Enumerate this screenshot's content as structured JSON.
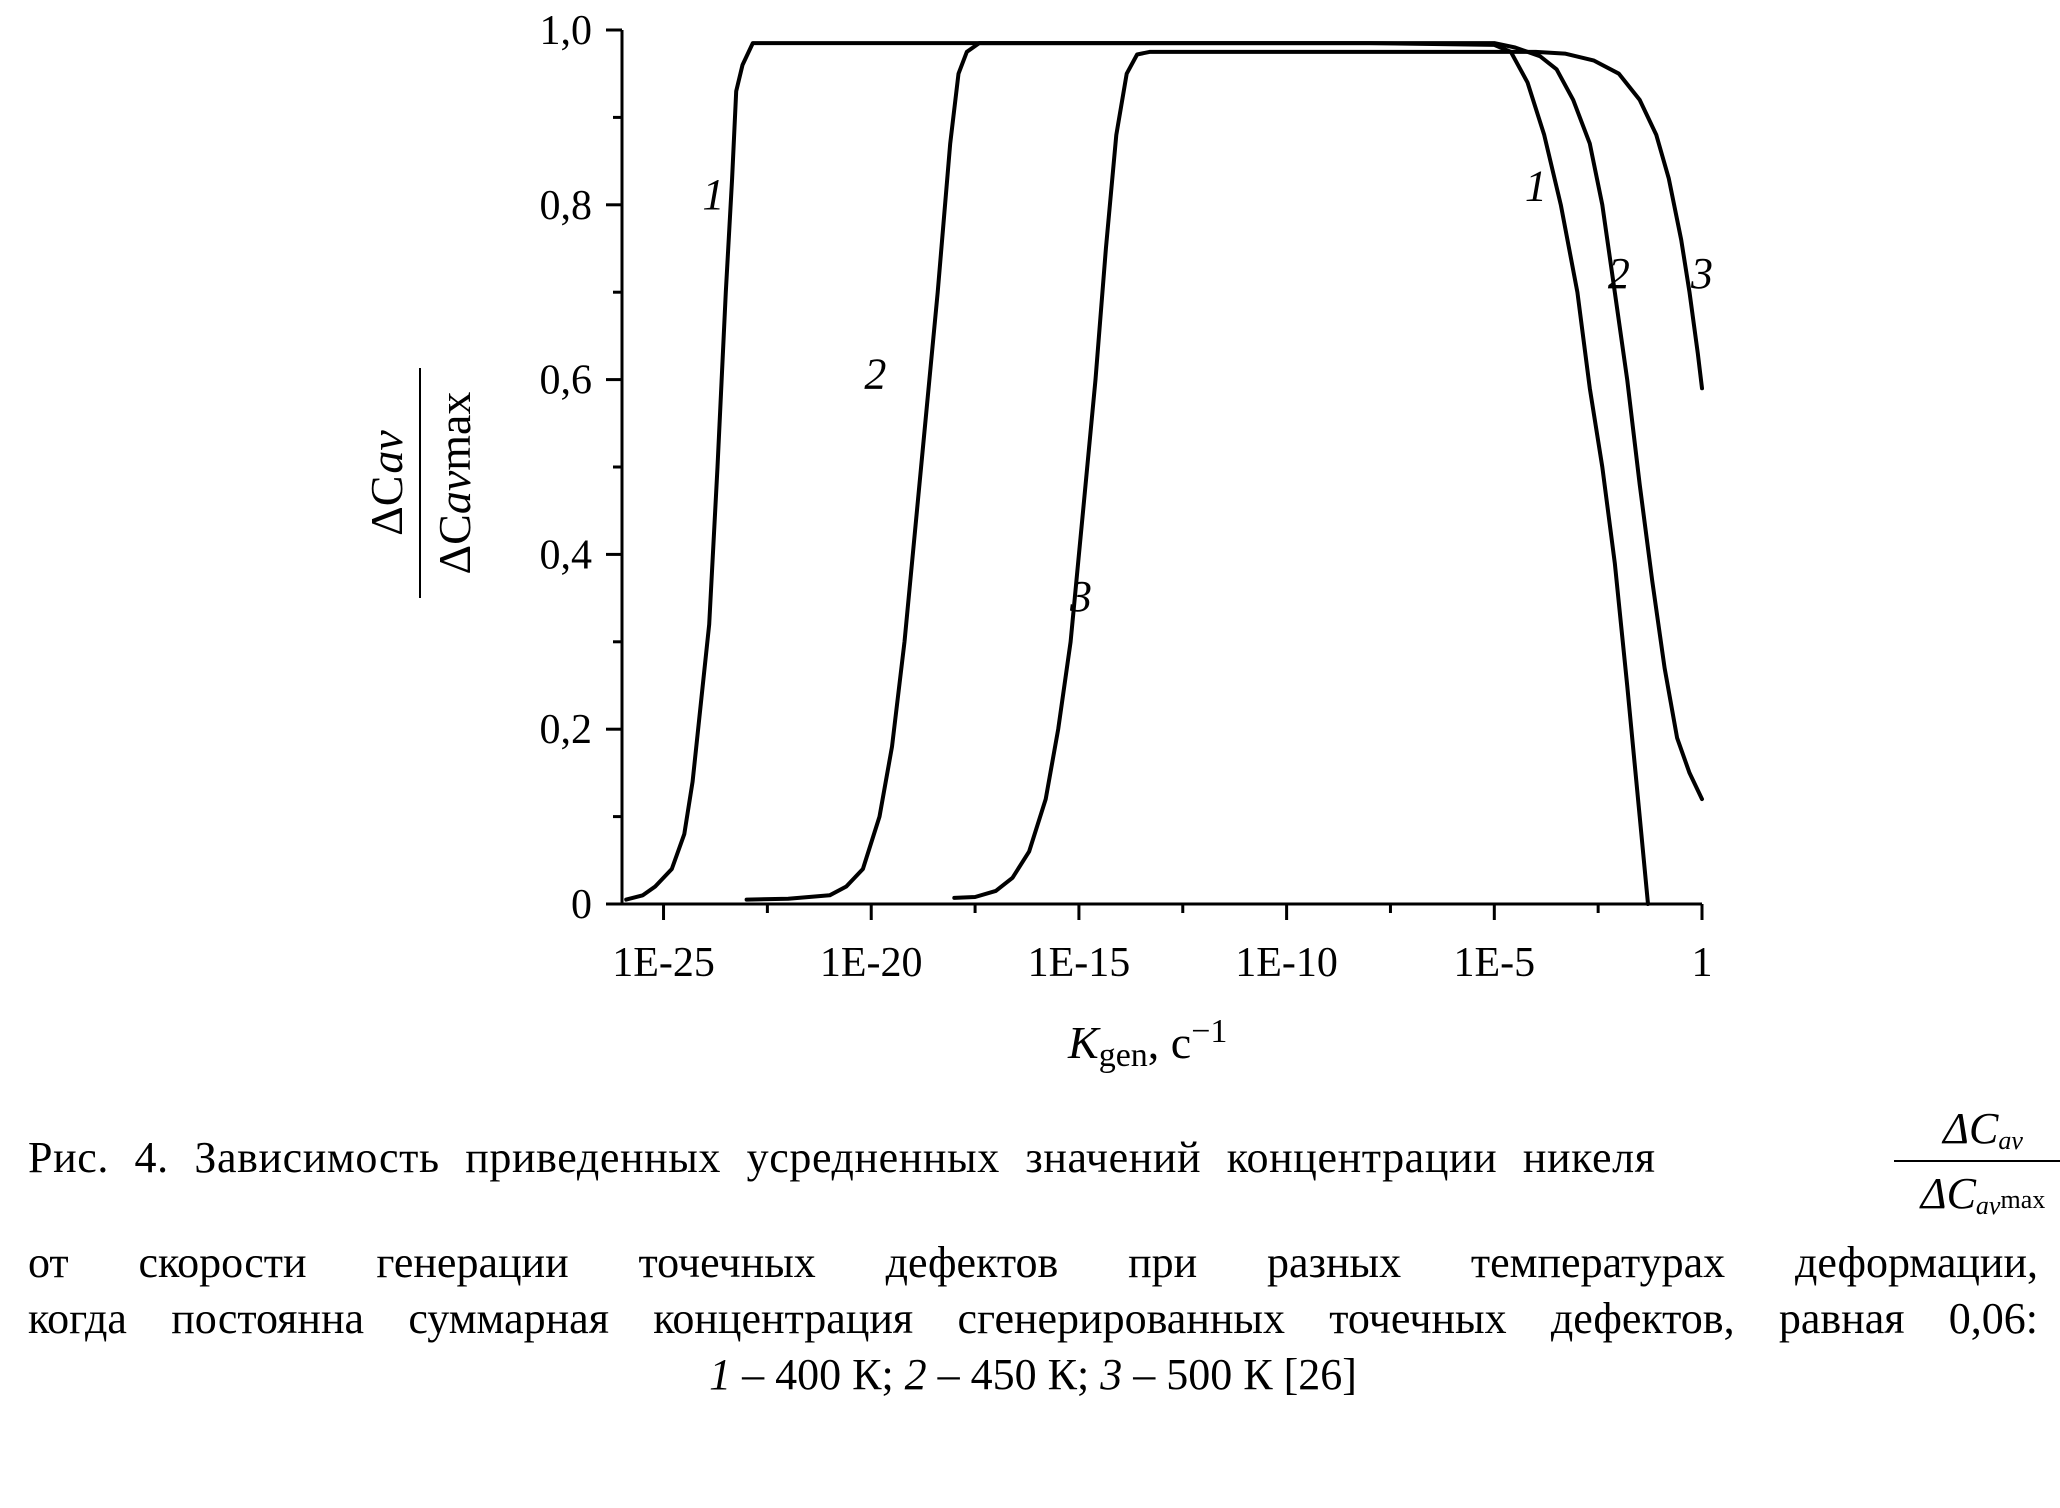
{
  "chart_data": {
    "type": "line",
    "xscale": "log",
    "xlim": [
      "1E-26",
      "1"
    ],
    "ylim": [
      0,
      1.0
    ],
    "xlabel": {
      "main": "K",
      "sub": "gen",
      "rest": ", с",
      "sup": "−1"
    },
    "ylabel": {
      "numerator": "ΔC",
      "numerator_sub": "av",
      "denominator": "ΔC",
      "denominator_sub": "av",
      "denominator_rest": "max"
    },
    "x_ticks": [
      "1E-25",
      "1E-20",
      "1E-15",
      "1E-10",
      "1E-5",
      "1"
    ],
    "y_ticks": [
      "0",
      "0,2",
      "0,4",
      "0,6",
      "0,8",
      "1,0"
    ],
    "grid": false,
    "series": [
      {
        "name": "1",
        "color": "#000000",
        "points": [
          [
            -25.9,
            0.005
          ],
          [
            -25.5,
            0.01
          ],
          [
            -25.2,
            0.02
          ],
          [
            -24.8,
            0.04
          ],
          [
            -24.5,
            0.08
          ],
          [
            -24.3,
            0.14
          ],
          [
            -24.1,
            0.23
          ],
          [
            -23.9,
            0.32
          ],
          [
            -23.7,
            0.5
          ],
          [
            -23.5,
            0.7
          ],
          [
            -23.35,
            0.83
          ],
          [
            -23.25,
            0.93
          ],
          [
            -23.1,
            0.96
          ],
          [
            -22.85,
            0.985
          ],
          [
            -22.5,
            0.985
          ],
          [
            -15,
            0.985
          ],
          [
            -8,
            0.985
          ],
          [
            -5,
            0.983
          ],
          [
            -4.6,
            0.975
          ],
          [
            -4.2,
            0.94
          ],
          [
            -3.8,
            0.88
          ],
          [
            -3.4,
            0.8
          ],
          [
            -3.0,
            0.7
          ],
          [
            -2.7,
            0.59
          ],
          [
            -2.4,
            0.5
          ],
          [
            -2.1,
            0.39
          ],
          [
            -1.8,
            0.25
          ],
          [
            -1.5,
            0.1
          ],
          [
            -1.3,
            0.0
          ]
        ]
      },
      {
        "name": "2",
        "color": "#000000",
        "points": [
          [
            -23.0,
            0.005
          ],
          [
            -22.0,
            0.006
          ],
          [
            -21.0,
            0.01
          ],
          [
            -20.6,
            0.02
          ],
          [
            -20.2,
            0.04
          ],
          [
            -19.8,
            0.1
          ],
          [
            -19.5,
            0.18
          ],
          [
            -19.2,
            0.3
          ],
          [
            -18.8,
            0.5
          ],
          [
            -18.4,
            0.7
          ],
          [
            -18.1,
            0.87
          ],
          [
            -17.9,
            0.95
          ],
          [
            -17.7,
            0.975
          ],
          [
            -17.4,
            0.985
          ],
          [
            -10,
            0.985
          ],
          [
            -5,
            0.985
          ],
          [
            -4.5,
            0.98
          ],
          [
            -3.9,
            0.97
          ],
          [
            -3.5,
            0.955
          ],
          [
            -3.1,
            0.92
          ],
          [
            -2.7,
            0.87
          ],
          [
            -2.4,
            0.8
          ],
          [
            -2.1,
            0.7
          ],
          [
            -1.8,
            0.6
          ],
          [
            -1.5,
            0.48
          ],
          [
            -1.2,
            0.37
          ],
          [
            -0.9,
            0.27
          ],
          [
            -0.6,
            0.19
          ],
          [
            -0.3,
            0.15
          ],
          [
            0.0,
            0.12
          ]
        ]
      },
      {
        "name": "3",
        "color": "#000000",
        "points": [
          [
            -18.0,
            0.007
          ],
          [
            -17.5,
            0.008
          ],
          [
            -17.0,
            0.015
          ],
          [
            -16.6,
            0.03
          ],
          [
            -16.2,
            0.06
          ],
          [
            -15.8,
            0.12
          ],
          [
            -15.5,
            0.2
          ],
          [
            -15.2,
            0.3
          ],
          [
            -14.9,
            0.45
          ],
          [
            -14.6,
            0.6
          ],
          [
            -14.35,
            0.75
          ],
          [
            -14.1,
            0.88
          ],
          [
            -13.85,
            0.95
          ],
          [
            -13.6,
            0.972
          ],
          [
            -13.3,
            0.975
          ],
          [
            -8,
            0.975
          ],
          [
            -5,
            0.975
          ],
          [
            -4.0,
            0.975
          ],
          [
            -3.3,
            0.973
          ],
          [
            -2.6,
            0.965
          ],
          [
            -2.0,
            0.95
          ],
          [
            -1.5,
            0.92
          ],
          [
            -1.1,
            0.88
          ],
          [
            -0.8,
            0.83
          ],
          [
            -0.5,
            0.76
          ],
          [
            -0.3,
            0.7
          ],
          [
            -0.1,
            0.63
          ],
          [
            0.0,
            0.59
          ]
        ]
      }
    ],
    "curve_labels": [
      {
        "text": "1",
        "x": -23.8,
        "y": 0.795
      },
      {
        "text": "2",
        "x": -19.9,
        "y": 0.59
      },
      {
        "text": "3",
        "x": -14.95,
        "y": 0.335
      },
      {
        "text": "1",
        "x": -4.0,
        "y": 0.805
      },
      {
        "text": "2",
        "x": -2.0,
        "y": 0.705
      },
      {
        "text": "3",
        "x": 0.0,
        "y": 0.705
      }
    ]
  },
  "caption": {
    "line1": "Рис. 4. Зависимость приведенных усредненных значений концентрации никеля",
    "fraction": {
      "numerator": "ΔC",
      "numerator_sub": "av",
      "denominator": "ΔC",
      "denominator_sub": "av",
      "denominator_rest": "max"
    },
    "line2": "от скорости генерации точечных дефектов при разных температурах деформации,",
    "line3": "когда постоянна суммарная концентрация сгенерированных точечных дефектов, равная 0,06:",
    "line4": {
      "n1": "1",
      "t1": " – 400 К; ",
      "n2": "2",
      "t2": " – 450 К; ",
      "n3": "3",
      "t3": " – 500 К [26]"
    }
  }
}
